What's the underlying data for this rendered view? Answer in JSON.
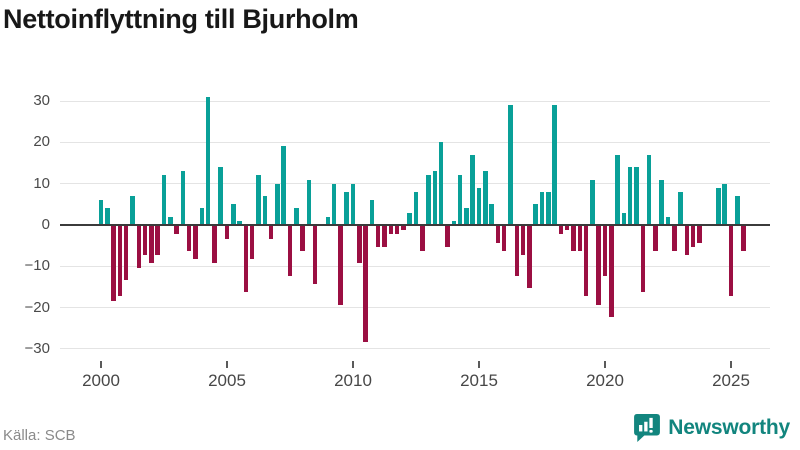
{
  "title": "Nettoinflyttning till Bjurholm",
  "source": "Källa: SCB",
  "logo": {
    "text": "Newsworthy"
  },
  "colors": {
    "positive": "#09a098",
    "negative": "#9b0f42",
    "gridline": "#e4e4e4",
    "zero_line": "#3b3b3b",
    "logo": "#12857e"
  },
  "chart_data": {
    "type": "bar",
    "title": "Nettoinflyttning till Bjurholm",
    "xlabel": "",
    "ylabel": "",
    "period": "quarterly",
    "start_year": 2000,
    "start_quarter": 1,
    "ylim": [
      -30,
      31
    ],
    "grid": "horizontal",
    "legend": "none",
    "y_ticks": [
      {
        "value": 30,
        "label": "30"
      },
      {
        "value": 20,
        "label": "20"
      },
      {
        "value": 10,
        "label": "10"
      },
      {
        "value": 0,
        "label": "0"
      },
      {
        "value": -10,
        "label": "−10"
      },
      {
        "value": -20,
        "label": "−20"
      },
      {
        "value": -30,
        "label": "−30"
      }
    ],
    "x_ticks": [
      {
        "index": 0,
        "label": "2000"
      },
      {
        "index": 20,
        "label": "2005"
      },
      {
        "index": 40,
        "label": "2010"
      },
      {
        "index": 60,
        "label": "2015"
      },
      {
        "index": 80,
        "label": "2020"
      },
      {
        "index": 100,
        "label": "2025"
      }
    ],
    "values": [
      6,
      4,
      -18,
      -17,
      -13,
      7,
      -10,
      -7,
      -9,
      -7,
      12,
      2,
      -2,
      13,
      -6,
      -8,
      4,
      31,
      -9,
      14,
      -3,
      5,
      1,
      -16,
      -8,
      12,
      7,
      -3,
      10,
      19,
      -12,
      4,
      -6,
      11,
      -14,
      0,
      2,
      10,
      -19,
      8,
      10,
      -9,
      -28,
      6,
      -5,
      -5,
      -2,
      -2,
      -1,
      3,
      8,
      -6,
      12,
      13,
      20,
      -5,
      1,
      12,
      4,
      17,
      9,
      13,
      5,
      -4,
      -6,
      29,
      -12,
      -7,
      -15,
      5,
      8,
      8,
      29,
      -2,
      -1,
      -6,
      -6,
      -17,
      11,
      -19,
      -12,
      -22,
      17,
      3,
      14,
      14,
      -16,
      17,
      -6,
      11,
      2,
      -6,
      8,
      -7,
      -5,
      -4,
      0,
      0,
      9,
      10,
      -17,
      7,
      -6
    ]
  }
}
